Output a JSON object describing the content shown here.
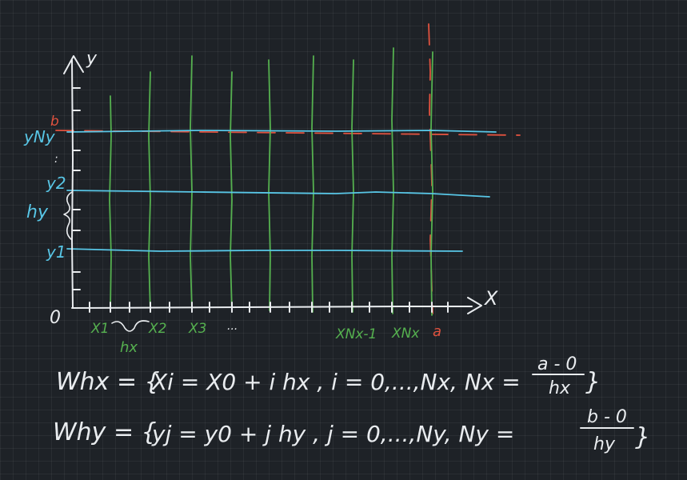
{
  "colors": {
    "background": "#1e2227",
    "grid": "#2b3036",
    "white_ink": "#e9ecef",
    "green_ink": "#55b04f",
    "blue_ink": "#58c6e6",
    "red_ink": "#e0523f"
  },
  "axes": {
    "y_label": "y",
    "x_label": "X",
    "origin_label": "0"
  },
  "labels": {
    "b": "b",
    "y_ny": "yNy",
    "y_dots": ":",
    "y2": "y2",
    "hy": "hy",
    "y1": "y1",
    "x1": "X1",
    "x2": "X2",
    "x3": "X3",
    "x_dots": "...",
    "hx": "hx",
    "x_nx_minus_1": "XNx-1",
    "x_nx": "XNx",
    "a": "a"
  },
  "formulas": {
    "line1": {
      "lhs": "Whx = {",
      "body": "Xi = X0 + i hx , i = 0,...,Nx,  Nx =",
      "frac_num": "a - 0",
      "frac_den": "hx",
      "close": "}"
    },
    "line2": {
      "lhs": "Why = {",
      "body": "yj = y0 + j hy , j = 0,...,Ny,  Ny =",
      "frac_num": "b - 0",
      "frac_den": "hy",
      "close": "}"
    }
  }
}
